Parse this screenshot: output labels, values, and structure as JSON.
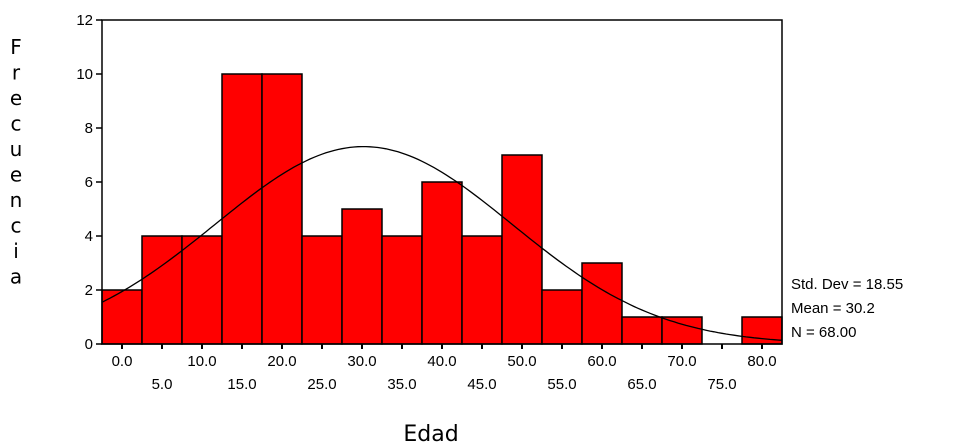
{
  "chart_data": {
    "type": "bar",
    "xlabel": "Edad",
    "ylabel": "Frecuencia",
    "bin_width": 5,
    "bins": [
      {
        "center": 0.0,
        "count": 2
      },
      {
        "center": 5.0,
        "count": 4
      },
      {
        "center": 10.0,
        "count": 4
      },
      {
        "center": 15.0,
        "count": 10
      },
      {
        "center": 20.0,
        "count": 10
      },
      {
        "center": 25.0,
        "count": 4
      },
      {
        "center": 30.0,
        "count": 5
      },
      {
        "center": 35.0,
        "count": 4
      },
      {
        "center": 40.0,
        "count": 6
      },
      {
        "center": 45.0,
        "count": 4
      },
      {
        "center": 50.0,
        "count": 7
      },
      {
        "center": 55.0,
        "count": 2
      },
      {
        "center": 60.0,
        "count": 3
      },
      {
        "center": 65.0,
        "count": 1
      },
      {
        "center": 70.0,
        "count": 1
      },
      {
        "center": 75.0,
        "count": 0
      },
      {
        "center": 80.0,
        "count": 1
      }
    ],
    "x_tick_labels_row1": [
      "0.0",
      "10.0",
      "20.0",
      "30.0",
      "40.0",
      "50.0",
      "60.0",
      "70.0",
      "80.0"
    ],
    "x_tick_labels_row2": [
      "5.0",
      "15.0",
      "25.0",
      "35.0",
      "45.0",
      "55.0",
      "65.0",
      "75.0"
    ],
    "y_tick_labels": [
      "0",
      "2",
      "4",
      "6",
      "8",
      "10",
      "12"
    ],
    "ylim": [
      0,
      12
    ],
    "xlim": [
      -2.5,
      82.5
    ],
    "normal_curve": {
      "mean": 30.2,
      "std_dev": 18.55,
      "n": 68
    },
    "stats": [
      "Std. Dev = 18.55",
      "Mean = 30.2",
      "N = 68.00"
    ],
    "colors": {
      "bar": "#ff0000",
      "outline": "#000000",
      "curve": "#000000"
    }
  }
}
